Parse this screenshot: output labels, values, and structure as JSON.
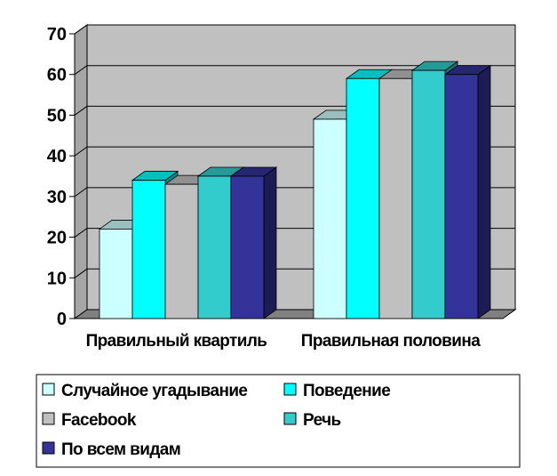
{
  "chart_data": {
    "type": "bar",
    "categories": [
      "Правильный квартиль",
      "Правильная половина"
    ],
    "series": [
      {
        "name": "Случайное угадывание",
        "values": [
          22,
          49
        ],
        "color": "#CCFFFF"
      },
      {
        "name": "Поведение",
        "values": [
          34,
          59
        ],
        "color": "#00FFFF"
      },
      {
        "name": "Facebook",
        "values": [
          33,
          59
        ],
        "color": "#C0C0C0"
      },
      {
        "name": "Речь",
        "values": [
          35,
          61
        ],
        "color": "#33CCCC"
      },
      {
        "name": "По всем видам",
        "values": [
          35,
          60
        ],
        "color": "#333399"
      }
    ],
    "ylim": [
      0,
      70
    ],
    "yticks": [
      "0",
      "10",
      "20",
      "30",
      "40",
      "50",
      "60",
      "70"
    ],
    "grid": true,
    "three_d": true,
    "legend_position": "bottom",
    "wall_color": "#C0C0C0"
  }
}
